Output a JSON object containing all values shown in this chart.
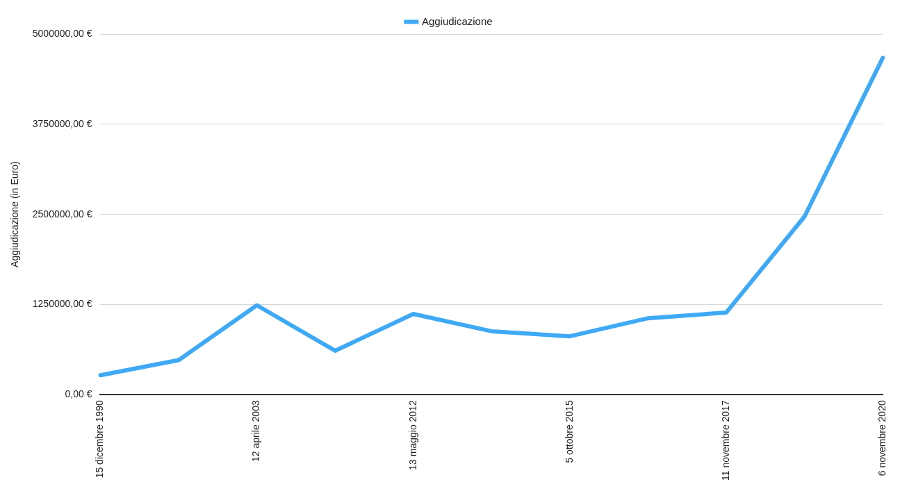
{
  "chart_data": {
    "type": "line",
    "ylabel": "Aggiudicazione (in Euro)",
    "categories": [
      "15 dicembre 1990",
      null,
      "12 aprile 2003",
      null,
      "13 maggio 2012",
      null,
      "5 ottobre 2015",
      null,
      "11 novembre 2017",
      null,
      "6 novembre 2020"
    ],
    "series": [
      {
        "name": "Aggiudicazione",
        "color": "#3fa9f5",
        "values": [
          270000,
          480000,
          1240000,
          610000,
          1120000,
          880000,
          810000,
          1060000,
          1140000,
          2470000,
          4670000
        ]
      }
    ],
    "ylim": [
      0,
      5000000
    ],
    "yticks": [
      {
        "value": 0,
        "label": "0,00 €"
      },
      {
        "value": 1250000,
        "label": "1250000,00 €"
      },
      {
        "value": 2500000,
        "label": "2500000,00 €"
      },
      {
        "value": 3750000,
        "label": "3750000,00 €"
      },
      {
        "value": 5000000,
        "label": "5000000,00 €"
      }
    ],
    "grid": "y",
    "legend": "top",
    "marker": "none"
  }
}
